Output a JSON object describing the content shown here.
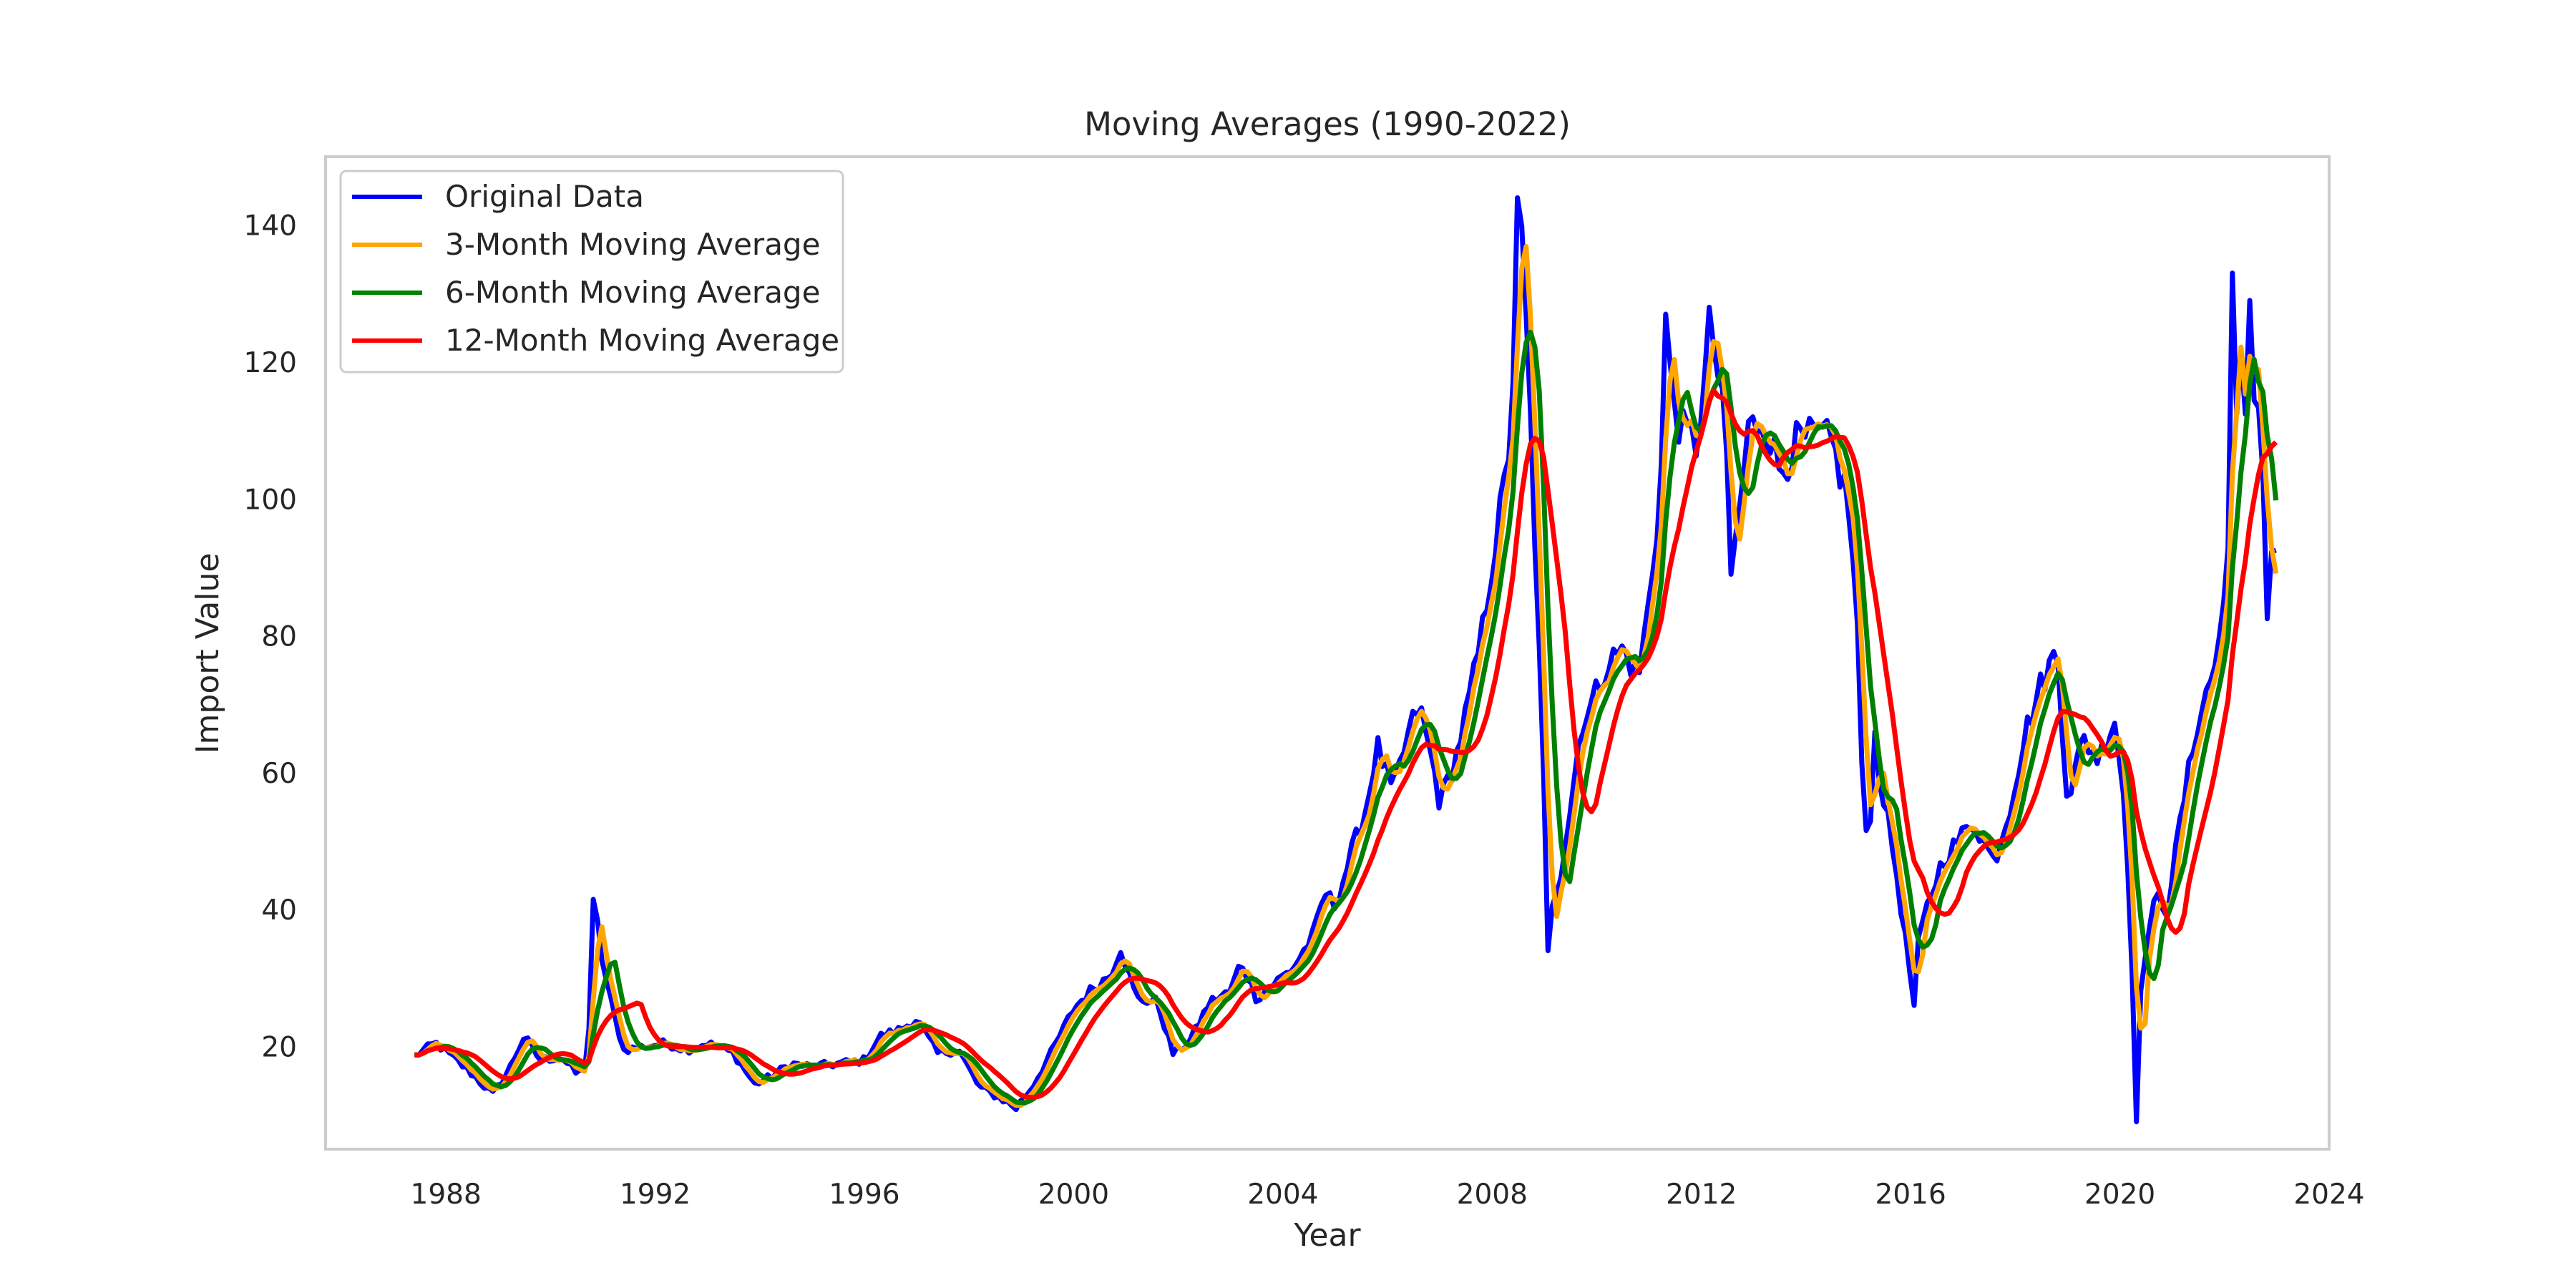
{
  "chart_data": {
    "type": "line",
    "title": "Moving Averages (1990-2022)",
    "xlabel": "Year",
    "ylabel": "Import Value",
    "xlim": [
      1985.7,
      2024.0
    ],
    "ylim": [
      5.0,
      150.0
    ],
    "x_ticks": [
      1988,
      1992,
      1996,
      2000,
      2004,
      2008,
      2012,
      2016,
      2020,
      2024
    ],
    "y_ticks": [
      20,
      40,
      60,
      80,
      100,
      120,
      140
    ],
    "grid": false,
    "legend_position": "top-left",
    "keypoints": [
      [
        1987.4,
        18.6
      ],
      [
        1987.8,
        20.5
      ],
      [
        1988.2,
        18.0
      ],
      [
        1988.5,
        16.0
      ],
      [
        1988.9,
        13.0
      ],
      [
        1989.2,
        16.5
      ],
      [
        1989.5,
        21.5
      ],
      [
        1989.8,
        18.0
      ],
      [
        1990.2,
        18.5
      ],
      [
        1990.5,
        16.0
      ],
      [
        1990.7,
        17.0
      ],
      [
        1990.8,
        34.0
      ],
      [
        1990.85,
        40.5
      ],
      [
        1991.0,
        32.0
      ],
      [
        1991.2,
        25.0
      ],
      [
        1991.4,
        19.5
      ],
      [
        1991.8,
        20.0
      ],
      [
        1992.2,
        20.5
      ],
      [
        1992.6,
        19.5
      ],
      [
        1993.0,
        20.5
      ],
      [
        1993.5,
        19.0
      ],
      [
        1993.9,
        14.5
      ],
      [
        1994.2,
        15.5
      ],
      [
        1994.6,
        17.5
      ],
      [
        1995.0,
        17.0
      ],
      [
        1995.5,
        17.5
      ],
      [
        1996.0,
        18.0
      ],
      [
        1996.3,
        21.5
      ],
      [
        1996.7,
        22.5
      ],
      [
        1997.0,
        24.0
      ],
      [
        1997.4,
        19.0
      ],
      [
        1997.8,
        19.5
      ],
      [
        1998.2,
        14.0
      ],
      [
        1998.6,
        12.5
      ],
      [
        1998.9,
        11.0
      ],
      [
        1999.2,
        14.0
      ],
      [
        1999.6,
        19.5
      ],
      [
        2000.0,
        25.5
      ],
      [
        2000.3,
        28.0
      ],
      [
        2000.7,
        30.5
      ],
      [
        2000.9,
        34.5
      ],
      [
        2001.2,
        27.0
      ],
      [
        2001.6,
        26.5
      ],
      [
        2001.9,
        19.0
      ],
      [
        2002.2,
        20.5
      ],
      [
        2002.6,
        26.5
      ],
      [
        2003.0,
        28.0
      ],
      [
        2003.2,
        32.5
      ],
      [
        2003.5,
        27.0
      ],
      [
        2003.8,
        29.0
      ],
      [
        2004.2,
        31.5
      ],
      [
        2004.6,
        36.5
      ],
      [
        2004.8,
        42.5
      ],
      [
        2005.0,
        40.5
      ],
      [
        2005.3,
        48.0
      ],
      [
        2005.6,
        55.0
      ],
      [
        2005.8,
        64.0
      ],
      [
        2006.1,
        57.0
      ],
      [
        2006.4,
        65.5
      ],
      [
        2006.6,
        70.0
      ],
      [
        2006.9,
        60.0
      ],
      [
        2007.0,
        55.5
      ],
      [
        2007.3,
        62.0
      ],
      [
        2007.6,
        72.0
      ],
      [
        2007.8,
        80.0
      ],
      [
        2008.0,
        90.5
      ],
      [
        2008.3,
        105.0
      ],
      [
        2008.45,
        125.0
      ],
      [
        2008.55,
        140.0
      ],
      [
        2008.7,
        118.0
      ],
      [
        2008.85,
        88.0
      ],
      [
        2009.0,
        55.0
      ],
      [
        2009.1,
        40.0
      ],
      [
        2009.3,
        45.0
      ],
      [
        2009.5,
        55.0
      ],
      [
        2009.7,
        67.0
      ],
      [
        2009.9,
        70.0
      ],
      [
        2010.2,
        76.0
      ],
      [
        2010.5,
        78.0
      ],
      [
        2010.8,
        74.0
      ],
      [
        2011.0,
        85.0
      ],
      [
        2011.2,
        100.0
      ],
      [
        2011.35,
        120.0
      ],
      [
        2011.6,
        110.0
      ],
      [
        2011.9,
        108.0
      ],
      [
        2012.2,
        125.0
      ],
      [
        2012.45,
        110.0
      ],
      [
        2012.6,
        90.0
      ],
      [
        2012.9,
        110.0
      ],
      [
        2013.2,
        112.0
      ],
      [
        2013.5,
        104.0
      ],
      [
        2013.8,
        108.0
      ],
      [
        2014.2,
        109.0
      ],
      [
        2014.5,
        108.0
      ],
      [
        2014.8,
        100.0
      ],
      [
        2015.0,
        80.0
      ],
      [
        2015.1,
        50.0
      ],
      [
        2015.4,
        60.0
      ],
      [
        2015.7,
        47.0
      ],
      [
        2016.0,
        30.0
      ],
      [
        2016.3,
        40.0
      ],
      [
        2016.6,
        47.0
      ],
      [
        2016.9,
        50.0
      ],
      [
        2017.2,
        53.0
      ],
      [
        2017.6,
        47.0
      ],
      [
        2017.9,
        55.0
      ],
      [
        2018.2,
        66.0
      ],
      [
        2018.5,
        73.0
      ],
      [
        2018.8,
        78.0
      ],
      [
        2019.0,
        56.0
      ],
      [
        2019.3,
        65.0
      ],
      [
        2019.6,
        62.0
      ],
      [
        2019.9,
        68.0
      ],
      [
        2020.1,
        55.0
      ],
      [
        2020.3,
        20.0
      ],
      [
        2020.5,
        35.0
      ],
      [
        2020.7,
        42.0
      ],
      [
        2020.9,
        40.0
      ],
      [
        2021.2,
        55.0
      ],
      [
        2021.5,
        68.0
      ],
      [
        2021.8,
        75.0
      ],
      [
        2022.0,
        85.0
      ],
      [
        2022.2,
        108.0
      ],
      [
        2022.3,
        120.0
      ],
      [
        2022.45,
        106.0
      ],
      [
        2022.6,
        118.0
      ],
      [
        2022.8,
        100.0
      ],
      [
        2022.95,
        90.0
      ],
      [
        2023.0,
        94.0
      ]
    ],
    "spikes": [
      [
        1990.82,
        41.5
      ],
      [
        2008.52,
        144.0
      ],
      [
        2009.05,
        34.0
      ],
      [
        2011.3,
        127.0
      ],
      [
        2012.18,
        128.0
      ],
      [
        2012.6,
        89.0
      ],
      [
        2015.3,
        66.0
      ],
      [
        2016.08,
        26.0
      ],
      [
        2020.3,
        9.0
      ],
      [
        2022.18,
        133.0
      ],
      [
        2022.5,
        129.0
      ],
      [
        2022.85,
        82.5
      ]
    ],
    "series": [
      {
        "name": "Original Data",
        "color": "#0000ff",
        "window": 1
      },
      {
        "name": "3-Month Moving Average",
        "color": "#ffa500",
        "window": 3
      },
      {
        "name": "6-Month Moving Average",
        "color": "#008000",
        "window": 6
      },
      {
        "name": "12-Month Moving Average",
        "color": "#ff0000",
        "window": 12
      }
    ]
  }
}
